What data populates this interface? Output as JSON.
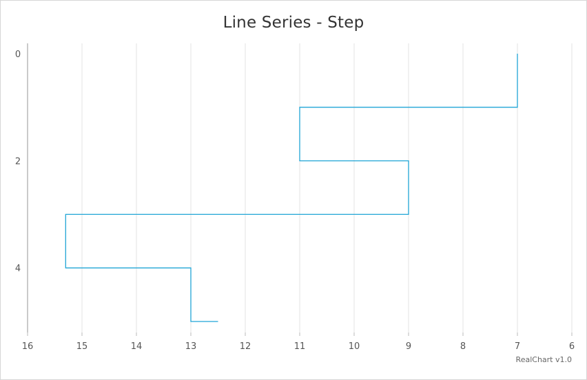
{
  "chart_data": {
    "type": "line",
    "title": "Line Series - Step",
    "orientation": "inverted",
    "step": true,
    "x_axis": {
      "reversed": true,
      "range": [
        6,
        16
      ],
      "ticks": [
        16,
        15,
        14,
        13,
        12,
        11,
        10,
        9,
        8,
        7,
        6
      ]
    },
    "y_axis": {
      "range": [
        0,
        5
      ],
      "ticks": [
        0,
        2,
        4
      ]
    },
    "series": [
      {
        "points": [
          {
            "category": 0,
            "value": 7
          },
          {
            "category": 1,
            "value": 11
          },
          {
            "category": 2,
            "value": 9
          },
          {
            "category": 3,
            "value": 15.3
          },
          {
            "category": 4,
            "value": 13
          },
          {
            "category": 5,
            "value": 12.5
          }
        ],
        "color": "#1fa5d6"
      }
    ],
    "grid": true,
    "legend": false
  },
  "credit": "RealChart v1.0"
}
